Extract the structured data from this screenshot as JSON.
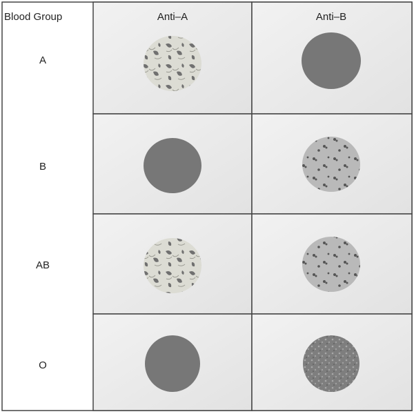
{
  "header": [
    "Blood Group",
    "Anti–A",
    "Anti–B"
  ],
  "rows": [
    "A",
    "B",
    "AB",
    "O"
  ]
}
